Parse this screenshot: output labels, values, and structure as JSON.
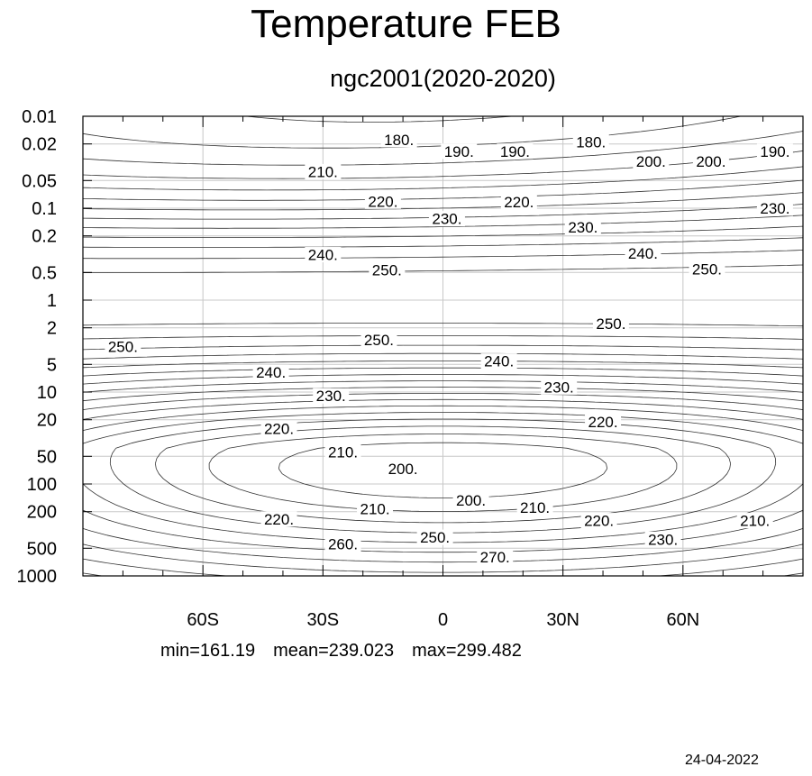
{
  "chart_data": {
    "type": "contour",
    "title": "Temperature FEB",
    "subtitle": "ngc2001(2020-2020)",
    "x_tick_labels": [
      "60S",
      "30S",
      "0",
      "30N",
      "60N"
    ],
    "x_tick_values": [
      -60,
      -30,
      0,
      30,
      60
    ],
    "xlim": [
      -90,
      90
    ],
    "y_tick_labels": [
      "0.01",
      "0.02",
      "0.05",
      "0.1",
      "0.2",
      "0.5",
      "1",
      "2",
      "5",
      "10",
      "20",
      "50",
      "100",
      "200",
      "500",
      "1000"
    ],
    "y_tick_values": [
      0.01,
      0.02,
      0.05,
      0.1,
      0.2,
      0.5,
      1,
      2,
      5,
      10,
      20,
      50,
      100,
      200,
      500,
      1000
    ],
    "y_scale": "log",
    "y_axis_inverted": true,
    "ylim": [
      0.01,
      1000
    ],
    "grid": true,
    "contour_interval": 5,
    "contour_labels": [
      {
        "text": "180.",
        "lat": -11,
        "p": 0.018
      },
      {
        "text": "190.",
        "lat": 4,
        "p": 0.024
      },
      {
        "text": "190.",
        "lat": 18,
        "p": 0.024
      },
      {
        "text": "180.",
        "lat": 37,
        "p": 0.019
      },
      {
        "text": "200.",
        "lat": 52,
        "p": 0.031
      },
      {
        "text": "200.",
        "lat": 67,
        "p": 0.031
      },
      {
        "text": "190.",
        "lat": 83,
        "p": 0.024
      },
      {
        "text": "210.",
        "lat": -30,
        "p": 0.04
      },
      {
        "text": "220.",
        "lat": -15,
        "p": 0.084
      },
      {
        "text": "220.",
        "lat": 19,
        "p": 0.085
      },
      {
        "text": "230.",
        "lat": 1,
        "p": 0.13
      },
      {
        "text": "230.",
        "lat": 35,
        "p": 0.16
      },
      {
        "text": "230.",
        "lat": 83,
        "p": 0.1
      },
      {
        "text": "240.",
        "lat": -30,
        "p": 0.32
      },
      {
        "text": "240.",
        "lat": 50,
        "p": 0.31
      },
      {
        "text": "250.",
        "lat": -14,
        "p": 0.47
      },
      {
        "text": "250.",
        "lat": 66,
        "p": 0.46
      },
      {
        "text": "250.",
        "lat": 42,
        "p": 1.8
      },
      {
        "text": "250.",
        "lat": -80,
        "p": 3.2
      },
      {
        "text": "250.",
        "lat": -16,
        "p": 2.7
      },
      {
        "text": "240.",
        "lat": -43,
        "p": 6.1
      },
      {
        "text": "240.",
        "lat": 14,
        "p": 4.6
      },
      {
        "text": "230.",
        "lat": -28,
        "p": 11
      },
      {
        "text": "230.",
        "lat": 29,
        "p": 8.8
      },
      {
        "text": "220.",
        "lat": -41,
        "p": 25
      },
      {
        "text": "220.",
        "lat": 40,
        "p": 21
      },
      {
        "text": "210.",
        "lat": -25,
        "p": 45
      },
      {
        "text": "200.",
        "lat": -10,
        "p": 68
      },
      {
        "text": "200.",
        "lat": 7,
        "p": 150
      },
      {
        "text": "210.",
        "lat": -17,
        "p": 185
      },
      {
        "text": "210.",
        "lat": 23,
        "p": 180
      },
      {
        "text": "220.",
        "lat": -41,
        "p": 240
      },
      {
        "text": "220.",
        "lat": 39,
        "p": 250
      },
      {
        "text": "210.",
        "lat": 78,
        "p": 250
      },
      {
        "text": "230.",
        "lat": 55,
        "p": 400
      },
      {
        "text": "260.",
        "lat": -25,
        "p": 450
      },
      {
        "text": "250.",
        "lat": -2,
        "p": 380
      },
      {
        "text": "270.",
        "lat": 13,
        "p": 620
      }
    ],
    "stats": {
      "min": "min=161.19",
      "mean": "mean=239.023",
      "max": "max=299.482"
    }
  },
  "footer": {
    "date": "24-04-2022"
  }
}
